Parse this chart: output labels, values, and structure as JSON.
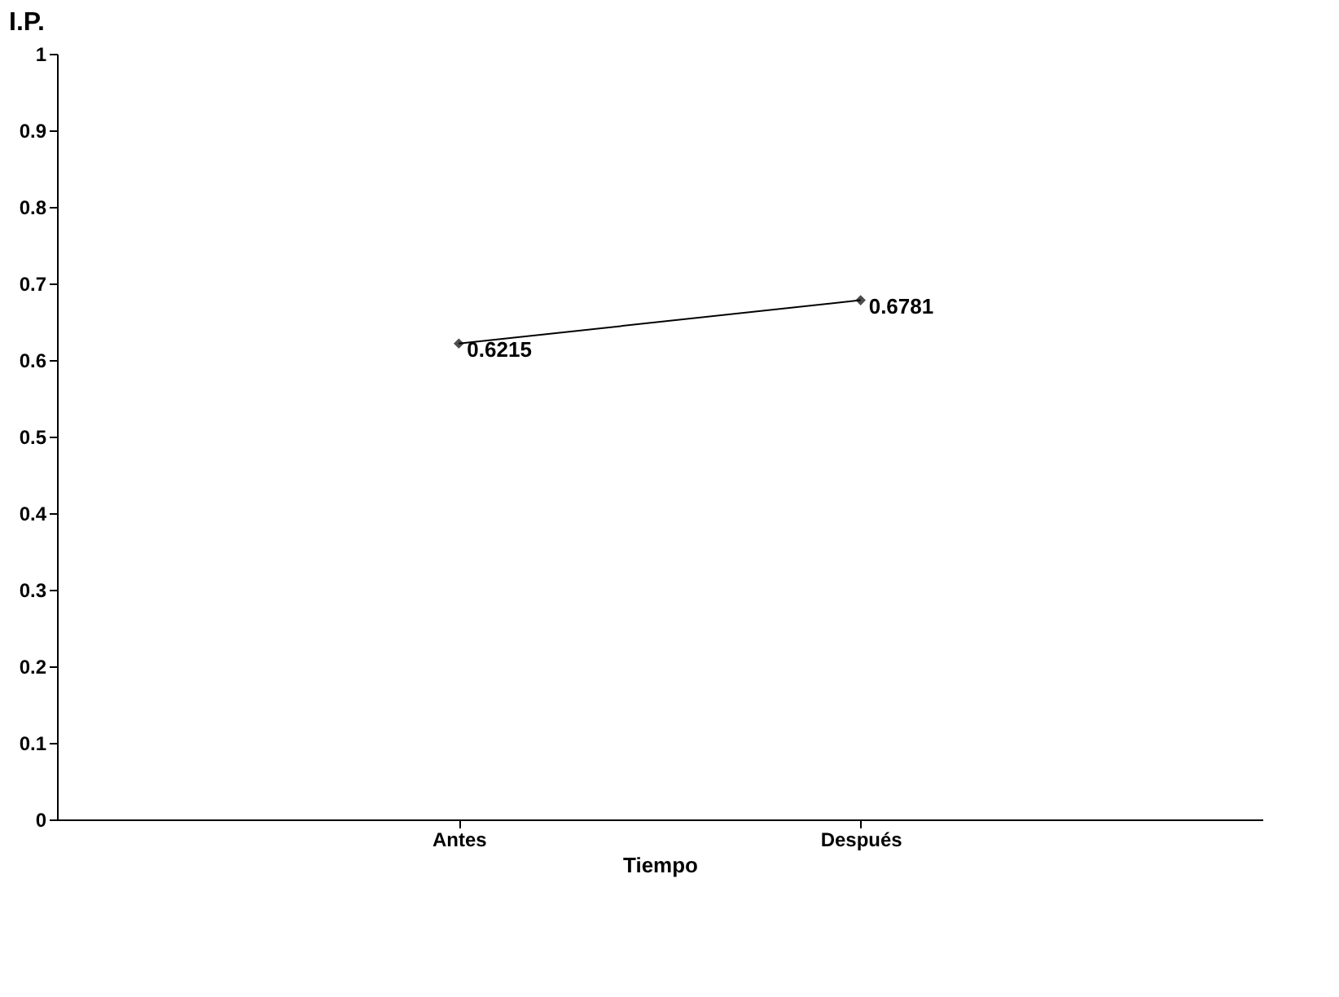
{
  "chart_data": {
    "type": "line",
    "xlabel": "Tiempo",
    "ylabel": "I.P.",
    "categories": [
      "Antes",
      "Después"
    ],
    "series": [
      {
        "color": "#000000",
        "values": [
          0.6215,
          0.6781
        ]
      }
    ],
    "ylim": [
      0,
      1
    ],
    "yticks": [
      0,
      0.1,
      0.2,
      0.3,
      0.4,
      0.5,
      0.6,
      0.7,
      0.8,
      0.9,
      1
    ],
    "grid": false,
    "marker": "diamond",
    "line_style": "solid",
    "data_labels": true
  }
}
